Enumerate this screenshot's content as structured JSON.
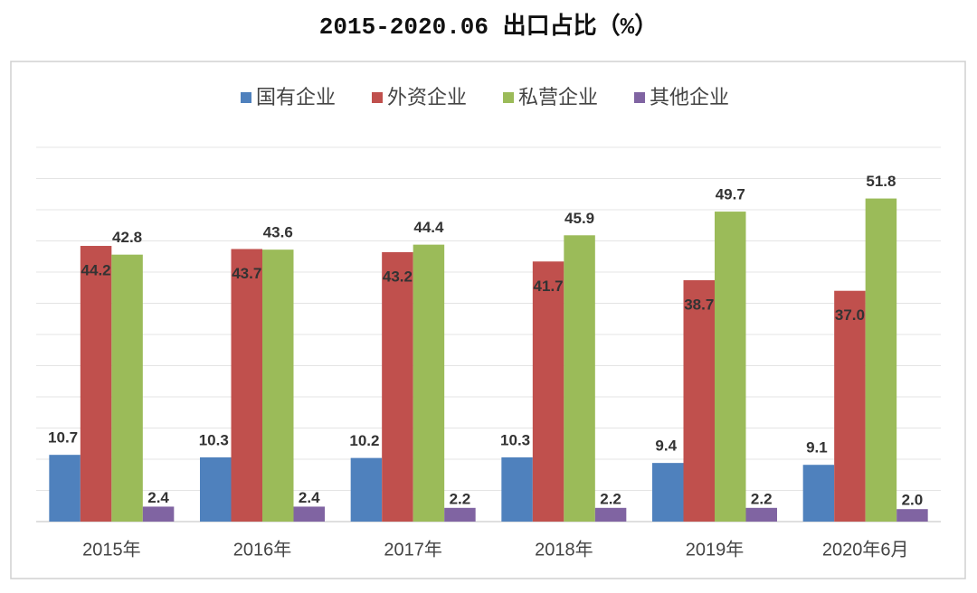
{
  "chart_data": {
    "type": "bar",
    "title": "2015-2020.06 出口占比（%）",
    "categories": [
      "2015年",
      "2016年",
      "2017年",
      "2018年",
      "2019年",
      "2020年6月"
    ],
    "series": [
      {
        "name": "国有企业",
        "color": "#4f81bd",
        "values": [
          10.7,
          10.3,
          10.2,
          10.3,
          9.4,
          9.1
        ],
        "value_labels": [
          "10.7",
          "10.3",
          "10.2",
          "10.3",
          "9.4",
          "9.1"
        ]
      },
      {
        "name": "外资企业",
        "color": "#c0504d",
        "values": [
          44.2,
          43.7,
          43.2,
          41.7,
          38.7,
          37.0
        ],
        "value_labels": [
          "44.2",
          "43.7",
          "43.2",
          "41.7",
          "38.7",
          "37.0"
        ]
      },
      {
        "name": "私营企业",
        "color": "#9bbb59",
        "values": [
          42.8,
          43.6,
          44.4,
          45.9,
          49.7,
          51.8
        ],
        "value_labels": [
          "42.8",
          "43.6",
          "44.4",
          "45.9",
          "49.7",
          "51.8"
        ]
      },
      {
        "name": "其他企业",
        "color": "#8064a2",
        "values": [
          2.4,
          2.4,
          2.2,
          2.2,
          2.2,
          2.0
        ],
        "value_labels": [
          "2.4",
          "2.4",
          "2.2",
          "2.2",
          "2.2",
          "2.0"
        ]
      }
    ],
    "ylim": [
      0,
      60
    ],
    "yticks": [
      0,
      5,
      10,
      15,
      20,
      25,
      30,
      35,
      40,
      45,
      50,
      55,
      60
    ],
    "grid": true
  }
}
